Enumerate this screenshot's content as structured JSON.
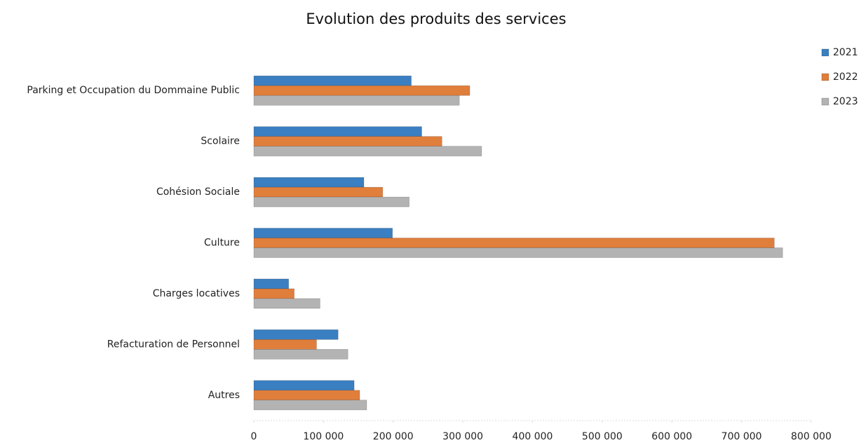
{
  "chart_data": {
    "type": "barh",
    "title": "Evolution des produits des services",
    "categories": [
      "Parking et Occupation du Dommaine Public",
      "Scolaire",
      "Cohésion Sociale",
      "Culture",
      "Charges locatives",
      "Refacturation de Personnel",
      "Autres"
    ],
    "series": [
      {
        "name": "2021",
        "color": "#3a7fc1",
        "values": [
          226000,
          241000,
          158000,
          199000,
          50000,
          121000,
          144000
        ]
      },
      {
        "name": "2022",
        "color": "#e07e3c",
        "values": [
          310000,
          270000,
          185000,
          747000,
          58000,
          90000,
          152000
        ]
      },
      {
        "name": "2023",
        "color": "#b3b3b3",
        "values": [
          295000,
          327000,
          223000,
          759000,
          95000,
          135000,
          162000
        ]
      }
    ],
    "xlim": [
      0,
      800000
    ],
    "xticks": [
      0,
      {
        "value": 100000,
        "label": "100 000"
      },
      {
        "value": 200000,
        "label": "200 000"
      },
      {
        "value": 300000,
        "label": "300 000"
      },
      {
        "value": 400000,
        "label": "400 000"
      },
      {
        "value": 500000,
        "label": "500 000"
      },
      {
        "value": 600000,
        "label": "600 000"
      },
      {
        "value": 700000,
        "label": "700 000"
      },
      {
        "value": 800000,
        "label": "800 000"
      }
    ],
    "legend": "right"
  }
}
